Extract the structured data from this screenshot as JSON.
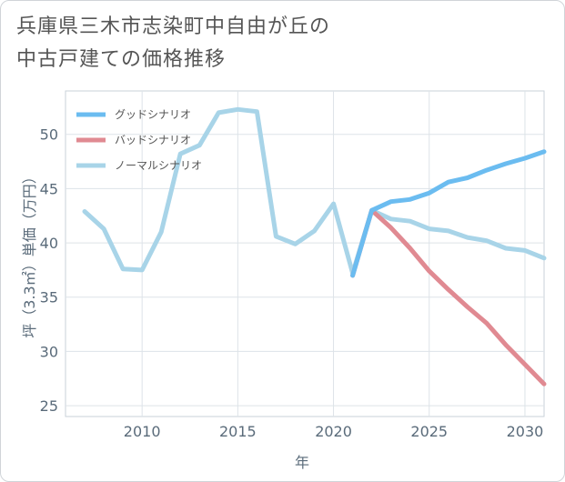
{
  "title": {
    "line1": "兵庫県三木市志染町中自由が丘の",
    "line2": "中古戸建ての価格推移"
  },
  "chart_data": {
    "type": "line",
    "xlabel": "年",
    "ylabel": "坪（3.3㎡）単価（万円）",
    "xlim": [
      2006,
      2031
    ],
    "ylim": [
      24,
      54
    ],
    "xticks": [
      2010,
      2015,
      2020,
      2025,
      2030
    ],
    "yticks": [
      25,
      30,
      35,
      40,
      45,
      50
    ],
    "grid": true,
    "legend_position": "top-left",
    "series": [
      {
        "name": "グッドシナリオ",
        "color": "#6bbcf0",
        "x": [
          2021,
          2022,
          2023,
          2024,
          2025,
          2026,
          2027,
          2028,
          2029,
          2030,
          2031
        ],
        "y": [
          37.0,
          43.0,
          43.8,
          44.0,
          44.6,
          45.6,
          46.0,
          46.7,
          47.3,
          47.8,
          48.4
        ]
      },
      {
        "name": "バッドシナリオ",
        "color": "#e08a92",
        "x": [
          2021,
          2022,
          2023,
          2024,
          2025,
          2026,
          2027,
          2028,
          2029,
          2030,
          2031
        ],
        "y": [
          37.0,
          43.0,
          41.4,
          39.5,
          37.4,
          35.7,
          34.1,
          32.6,
          30.6,
          28.8,
          27.0
        ]
      },
      {
        "name": "ノーマルシナリオ",
        "color": "#a8d4e8",
        "x": [
          2007,
          2008,
          2009,
          2010,
          2011,
          2012,
          2013,
          2014,
          2015,
          2016,
          2017,
          2018,
          2019,
          2020,
          2021,
          2022,
          2023,
          2024,
          2025,
          2026,
          2027,
          2028,
          2029,
          2030,
          2031
        ],
        "y": [
          42.9,
          41.3,
          37.6,
          37.5,
          41.0,
          48.2,
          49.0,
          52.0,
          52.3,
          52.1,
          40.6,
          39.9,
          41.1,
          43.6,
          37.2,
          43.0,
          42.2,
          42.0,
          41.3,
          41.1,
          40.5,
          40.2,
          39.5,
          39.3,
          38.6
        ]
      }
    ]
  }
}
